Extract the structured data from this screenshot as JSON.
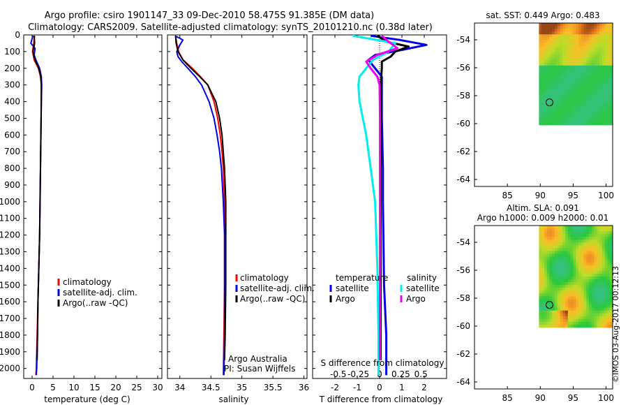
{
  "title": {
    "line1": "Argo profile: csiro 1901147_33 09-Dec-2010 58.475S 91.385E (DM data)",
    "line2": "Climatology: CARS2009. Satellite-adjusted climatology: synTS_20101210.nc (0.38d later)"
  },
  "colors": {
    "climatology": "#ff0000",
    "satellite": "#0000ee",
    "argo": "#000000",
    "sal_satellite": "#00eeee",
    "sal_argo": "#ee00ee"
  },
  "chart_data": [
    {
      "id": "temperature",
      "type": "line",
      "xlabel": "temperature (deg C)",
      "ylabel": "",
      "xlim": [
        -2,
        31
      ],
      "ylim": [
        2060,
        0
      ],
      "xticks": [
        0,
        5,
        10,
        15,
        20,
        25,
        30
      ],
      "yticks": [
        0,
        100,
        200,
        300,
        400,
        500,
        600,
        700,
        800,
        900,
        1000,
        1100,
        1200,
        1300,
        1400,
        1500,
        1600,
        1700,
        1800,
        1900,
        2000
      ],
      "legend": [
        "climatology",
        "satellite-adj. clim.",
        "Argo(..raw -QC)"
      ],
      "series": [
        {
          "name": "climatology",
          "color_key": "climatology",
          "depth": [
            5,
            50,
            100,
            150,
            200,
            250,
            300,
            400,
            600,
            800,
            1000,
            1200,
            1400,
            1600,
            1800,
            2000,
            2040
          ],
          "values": [
            0.6,
            0.4,
            0.1,
            0.5,
            1.5,
            2.0,
            2.2,
            2.2,
            2.1,
            2.0,
            1.9,
            1.8,
            1.6,
            1.4,
            1.2,
            1.0,
            0.9
          ]
        },
        {
          "name": "satellite-adj. clim.",
          "color_key": "satellite",
          "depth": [
            5,
            50,
            80,
            120,
            150,
            200,
            250,
            300,
            400,
            600,
            800,
            1000,
            1200,
            1400,
            1600,
            1800,
            2000,
            2040
          ],
          "values": [
            0.2,
            -0.3,
            0.7,
            0.5,
            0.9,
            1.8,
            2.2,
            2.3,
            2.2,
            2.1,
            2.0,
            1.9,
            1.8,
            1.6,
            1.4,
            1.3,
            1.1,
            1.0
          ]
        },
        {
          "name": "Argo(..raw -QC)",
          "color_key": "argo",
          "depth": [
            5,
            50,
            100,
            150,
            200,
            250,
            300,
            400,
            600,
            800,
            1000,
            1200,
            1400,
            1600,
            1800,
            1950
          ],
          "values": [
            0.5,
            0.6,
            0.2,
            0.7,
            1.6,
            2.1,
            2.2,
            2.2,
            2.1,
            2.0,
            1.9,
            1.8,
            1.6,
            1.4,
            1.3,
            1.2
          ]
        }
      ]
    },
    {
      "id": "salinity",
      "type": "line",
      "xlabel": "salinity",
      "ylabel": "",
      "xlim": [
        33.8,
        36.05
      ],
      "ylim": [
        2060,
        0
      ],
      "xticks": [
        34,
        34.5,
        35,
        35.5,
        36
      ],
      "legend": [
        "climatology",
        "satellite-adj. clim.",
        "Argo(..raw -QC)"
      ],
      "annotation_line1": "Argo Australia",
      "annotation_line2": "PI: Susan Wijffels",
      "series": [
        {
          "name": "climatology",
          "color_key": "climatology",
          "depth": [
            5,
            50,
            100,
            150,
            200,
            250,
            300,
            400,
            500,
            600,
            700,
            800,
            1000,
            1200,
            1500,
            1800,
            2040
          ],
          "values": [
            33.93,
            33.95,
            33.98,
            34.05,
            34.2,
            34.33,
            34.45,
            34.55,
            34.61,
            34.65,
            34.68,
            34.7,
            34.72,
            34.72,
            34.72,
            34.71,
            34.7
          ]
        },
        {
          "name": "satellite-adj. clim.",
          "color_key": "satellite",
          "depth": [
            5,
            30,
            60,
            100,
            130,
            160,
            200,
            250,
            300,
            400,
            500,
            600,
            700,
            800,
            1000,
            1200,
            1500,
            1800,
            2040
          ],
          "values": [
            33.92,
            34.05,
            34.0,
            33.95,
            33.97,
            34.03,
            34.13,
            34.25,
            34.35,
            34.47,
            34.55,
            34.6,
            34.64,
            34.67,
            34.7,
            34.72,
            34.72,
            34.72,
            34.71
          ]
        },
        {
          "name": "Argo(..raw -QC)",
          "color_key": "argo",
          "depth": [
            5,
            50,
            100,
            150,
            200,
            250,
            300,
            400,
            500,
            600,
            700,
            800,
            1000,
            1200,
            1500,
            1800,
            1950
          ],
          "values": [
            33.93,
            33.94,
            33.97,
            34.05,
            34.18,
            34.32,
            34.45,
            34.58,
            34.64,
            34.68,
            34.7,
            34.72,
            34.74,
            34.74,
            34.74,
            34.73,
            34.72
          ]
        }
      ]
    },
    {
      "id": "difference",
      "type": "line",
      "xlabel": "T difference from climatology",
      "top_label": "S difference from climatology",
      "xlim": [
        -3,
        3
      ],
      "ylim": [
        2060,
        0
      ],
      "xticks": [
        -2,
        -1,
        0,
        1,
        2
      ],
      "sticks_labels": [
        "-0.5",
        "-0.25",
        "0",
        "0.25",
        "0.5"
      ],
      "sticks_pos": [
        -1.85,
        -0.95,
        0,
        0.95,
        1.85
      ],
      "legend_temperature_title": "temperature",
      "legend_salinity_title": "salinity",
      "legend_sat": "satellite",
      "legend_argo": "Argo",
      "series": [
        {
          "name": "T satellite",
          "color_key": "satellite",
          "depth": [
            5,
            30,
            60,
            90,
            120,
            150,
            200,
            250,
            300,
            500,
            800,
            1000,
            1500,
            1800,
            2040
          ],
          "values": [
            -0.4,
            0.9,
            2.1,
            1.0,
            -0.2,
            -0.5,
            -0.2,
            0.1,
            0.1,
            0.1,
            0.15,
            0.15,
            0.2,
            0.3,
            0.3
          ]
        },
        {
          "name": "T Argo",
          "color_key": "argo",
          "depth": [
            5,
            40,
            70,
            100,
            130,
            160,
            200,
            300,
            500,
            1000,
            1500,
            1950
          ],
          "values": [
            -0.1,
            0.3,
            1.3,
            0.7,
            0.5,
            0.1,
            0.1,
            0.05,
            0.05,
            0.05,
            0.05,
            0.05
          ]
        },
        {
          "name": "S satellite",
          "color_key": "sal_satellite",
          "depth": [
            5,
            50,
            100,
            150,
            200,
            250,
            300,
            400,
            600,
            800,
            1000,
            1400,
            1800,
            2040
          ],
          "values": [
            -1.2,
            0.7,
            0.4,
            -0.3,
            -0.6,
            -0.9,
            -0.95,
            -0.9,
            -0.6,
            -0.4,
            -0.2,
            -0.1,
            -0.05,
            -0.05
          ]
        },
        {
          "name": "S Argo",
          "color_key": "sal_argo",
          "depth": [
            5,
            40,
            80,
            120,
            160,
            200,
            250,
            300,
            500,
            1000,
            1500,
            1950
          ],
          "values": [
            0.1,
            0.4,
            0.8,
            -0.1,
            -0.6,
            -0.4,
            -0.1,
            0.0,
            0.02,
            0.02,
            0.02,
            0.02
          ]
        }
      ]
    },
    {
      "id": "sst_map",
      "type": "heatmap",
      "title": "sat. SST: 0.449 Argo: 0.483",
      "xlim": [
        80,
        101
      ],
      "ylim": [
        -64.5,
        -52.8
      ],
      "xticks": [
        85,
        90,
        95,
        100
      ],
      "yticks": [
        -54,
        -56,
        -58,
        -60,
        -62,
        -64
      ],
      "extent_lon": [
        89.8,
        101
      ],
      "extent_lat": [
        -60.1,
        -52.8
      ],
      "marker": {
        "lon": 91.4,
        "lat": -58.48
      }
    },
    {
      "id": "sla_map",
      "type": "heatmap",
      "title_line1": "Altim. SLA: 0.091",
      "title_line2": "Argo h1000: 0.009 h2000: 0.01",
      "xlim": [
        80,
        101
      ],
      "ylim": [
        -64.5,
        -52.8
      ],
      "xticks": [
        85,
        90,
        95,
        100
      ],
      "yticks": [
        -54,
        -56,
        -58,
        -60,
        -62,
        -64
      ],
      "extent_lon": [
        89.8,
        101
      ],
      "extent_lat": [
        -60.1,
        -52.8
      ],
      "marker": {
        "lon": 91.4,
        "lat": -58.48
      }
    }
  ],
  "footer": "©IMOS 03-Aug-2017 00:12:13"
}
